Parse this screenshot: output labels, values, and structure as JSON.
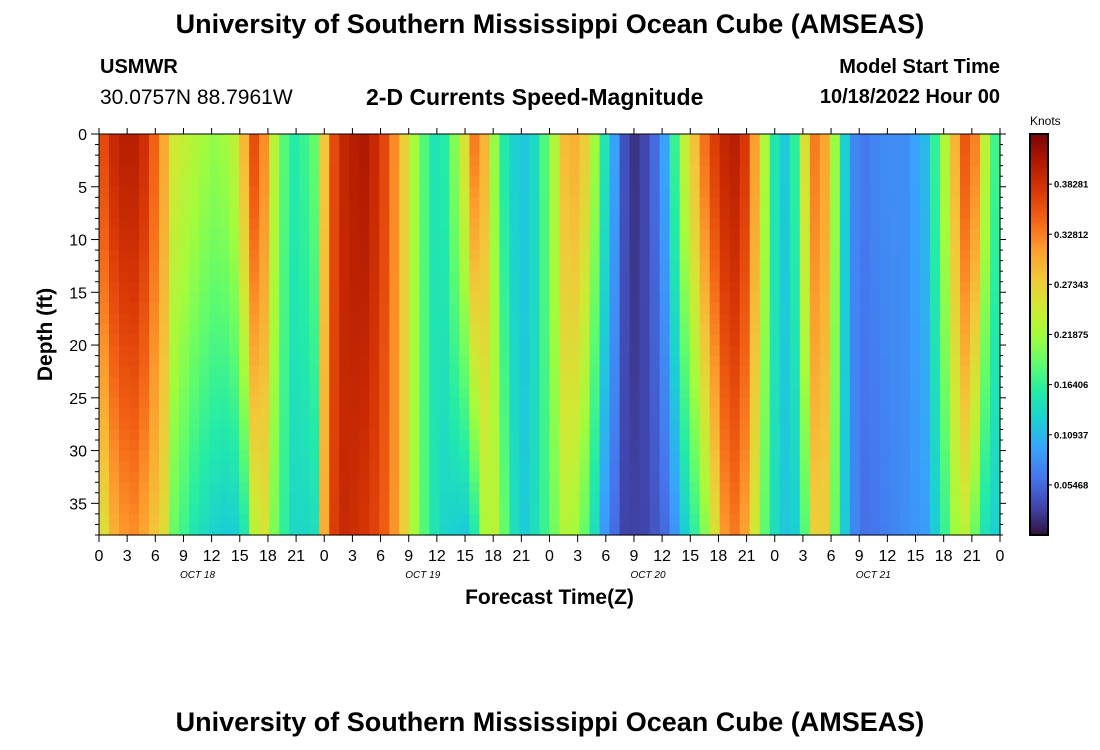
{
  "header": {
    "title": "University of Southern Mississippi Ocean Cube (AMSEAS)",
    "station": "USMWR",
    "coordinates": "30.0757N  88.7961W",
    "subtitle": "2-D Currents Speed-Magnitude",
    "model_start_label": "Model Start Time",
    "model_start_value": "10/18/2022 Hour 00"
  },
  "footer": {
    "title": "University of Southern Mississippi Ocean Cube (AMSEAS)"
  },
  "chart_data": {
    "type": "heatmap",
    "title": "2-D Currents Speed-Magnitude",
    "xlabel": "Forecast Time(Z)",
    "ylabel": "Depth (ft)",
    "x_range_hours": [
      0,
      96
    ],
    "ylim": [
      0,
      38
    ],
    "y_ticks": [
      "0",
      "5",
      "10",
      "15",
      "20",
      "25",
      "30",
      "35"
    ],
    "x_tick_labels": [
      "0",
      "3",
      "6",
      "9",
      "12",
      "15",
      "18",
      "21",
      "0",
      "3",
      "6",
      "9",
      "12",
      "15",
      "18",
      "21",
      "0",
      "3",
      "6",
      "9",
      "12",
      "15",
      "18",
      "21",
      "0",
      "3",
      "6",
      "9",
      "12",
      "15",
      "18",
      "21",
      "0"
    ],
    "day_labels": [
      "OCT 18",
      "OCT 19",
      "OCT 20",
      "OCT 21"
    ],
    "colorbar": {
      "units": "Knots",
      "range": [
        0,
        0.4375
      ],
      "tick_labels": [
        "0.38281",
        "0.32812",
        "0.27343",
        "0.21875",
        "0.16406",
        "0.10937",
        "0.05468"
      ],
      "colormap": [
        "#30123b",
        "#4145ab",
        "#4675ed",
        "#39a2fc",
        "#1bcfd4",
        "#24eca6",
        "#61fc6c",
        "#a4fc3b",
        "#d1e834",
        "#f3c63a",
        "#fe9b2d",
        "#f36315",
        "#d93806",
        "#b11901",
        "#7a0402"
      ]
    },
    "speed_profile_knots": {
      "hours": [
        0,
        2,
        4,
        5,
        7,
        8,
        10,
        12,
        14,
        15,
        16,
        16.5,
        17,
        18,
        19,
        21,
        23,
        24,
        25,
        26,
        28,
        30,
        32,
        34,
        36,
        37,
        39,
        40,
        41,
        42,
        43,
        44,
        45,
        46,
        48,
        50,
        52,
        54,
        56,
        57,
        58,
        59,
        60,
        61,
        62,
        64,
        65,
        66,
        67,
        68,
        69,
        70,
        71,
        72,
        73,
        74,
        75,
        76,
        77,
        78,
        79,
        80,
        81,
        82,
        84,
        86,
        88,
        89,
        90,
        91,
        92,
        93,
        94,
        96
      ],
      "surface": [
        0.35,
        0.4,
        0.4,
        0.38,
        0.3,
        0.25,
        0.23,
        0.21,
        0.22,
        0.26,
        0.33,
        0.36,
        0.35,
        0.3,
        0.2,
        0.15,
        0.19,
        0.28,
        0.36,
        0.39,
        0.41,
        0.38,
        0.3,
        0.2,
        0.14,
        0.16,
        0.26,
        0.33,
        0.3,
        0.22,
        0.16,
        0.13,
        0.12,
        0.12,
        0.2,
        0.31,
        0.27,
        0.14,
        0.04,
        0.02,
        0.03,
        0.05,
        0.08,
        0.14,
        0.22,
        0.31,
        0.36,
        0.38,
        0.4,
        0.4,
        0.37,
        0.3,
        0.22,
        0.15,
        0.12,
        0.15,
        0.24,
        0.33,
        0.33,
        0.25,
        0.16,
        0.09,
        0.06,
        0.07,
        0.08,
        0.08,
        0.11,
        0.16,
        0.22,
        0.28,
        0.35,
        0.36,
        0.26,
        0.14
      ],
      "bottom": [
        0.24,
        0.31,
        0.32,
        0.3,
        0.26,
        0.19,
        0.15,
        0.13,
        0.12,
        0.13,
        0.17,
        0.23,
        0.27,
        0.24,
        0.18,
        0.13,
        0.14,
        0.3,
        0.37,
        0.39,
        0.38,
        0.36,
        0.3,
        0.2,
        0.14,
        0.13,
        0.12,
        0.15,
        0.22,
        0.24,
        0.2,
        0.15,
        0.12,
        0.13,
        0.18,
        0.24,
        0.18,
        0.08,
        0.03,
        0.03,
        0.03,
        0.04,
        0.05,
        0.07,
        0.11,
        0.18,
        0.22,
        0.28,
        0.33,
        0.33,
        0.3,
        0.24,
        0.18,
        0.14,
        0.12,
        0.12,
        0.16,
        0.26,
        0.3,
        0.22,
        0.15,
        0.09,
        0.06,
        0.06,
        0.07,
        0.08,
        0.09,
        0.12,
        0.16,
        0.21,
        0.24,
        0.21,
        0.15,
        0.12
      ]
    }
  }
}
